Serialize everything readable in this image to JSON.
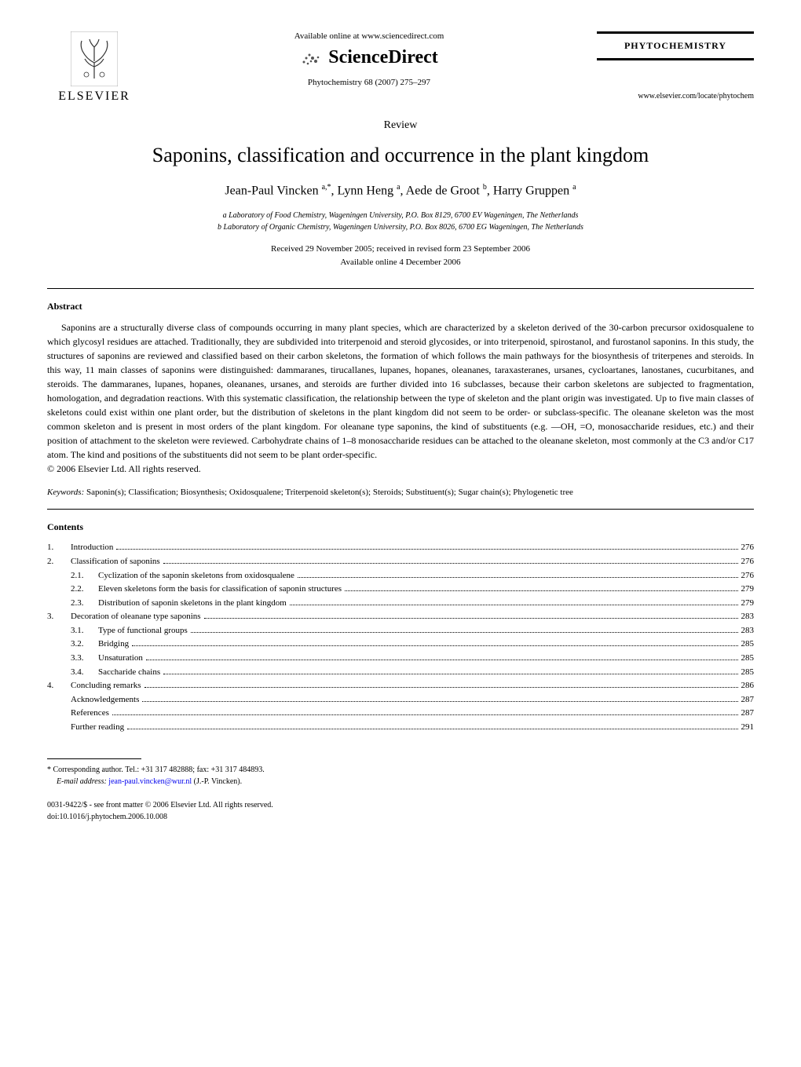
{
  "header": {
    "publisher": "ELSEVIER",
    "available_online": "Available online at www.sciencedirect.com",
    "sciencedirect": "ScienceDirect",
    "citation": "Phytochemistry 68 (2007) 275–297",
    "journal_name": "PHYTOCHEMISTRY",
    "journal_url": "www.elsevier.com/locate/phytochem"
  },
  "article": {
    "type": "Review",
    "title": "Saponins, classification and occurrence in the plant kingdom",
    "authors_html": "Jean-Paul Vincken <span class='sup'>a,*</span>, Lynn Heng <span class='sup'>a</span>, Aede de Groot <span class='sup'>b</span>, Harry Gruppen <span class='sup'>a</span>",
    "affiliation_a": "a Laboratory of Food Chemistry, Wageningen University, P.O. Box 8129, 6700 EV Wageningen, The Netherlands",
    "affiliation_b": "b Laboratory of Organic Chemistry, Wageningen University, P.O. Box 8026, 6700 EG Wageningen, The Netherlands",
    "received": "Received 29 November 2005; received in revised form 23 September 2006",
    "available": "Available online 4 December 2006"
  },
  "abstract": {
    "heading": "Abstract",
    "text": "Saponins are a structurally diverse class of compounds occurring in many plant species, which are characterized by a skeleton derived of the 30-carbon precursor oxidosqualene to which glycosyl residues are attached. Traditionally, they are subdivided into triterpenoid and steroid glycosides, or into triterpenoid, spirostanol, and furostanol saponins. In this study, the structures of saponins are reviewed and classified based on their carbon skeletons, the formation of which follows the main pathways for the biosynthesis of triterpenes and steroids. In this way, 11 main classes of saponins were distinguished: dammaranes, tirucallanes, lupanes, hopanes, oleananes, taraxasteranes, ursanes, cycloartanes, lanostanes, cucurbitanes, and steroids. The dammaranes, lupanes, hopanes, oleananes, ursanes, and steroids are further divided into 16 subclasses, because their carbon skeletons are subjected to fragmentation, homologation, and degradation reactions. With this systematic classification, the relationship between the type of skeleton and the plant origin was investigated. Up to five main classes of skeletons could exist within one plant order, but the distribution of skeletons in the plant kingdom did not seem to be order- or subclass-specific. The oleanane skeleton was the most common skeleton and is present in most orders of the plant kingdom. For oleanane type saponins, the kind of substituents (e.g. —OH, =O, monosaccharide residues, etc.) and their position of attachment to the skeleton were reviewed. Carbohydrate chains of 1–8 monosaccharide residues can be attached to the oleanane skeleton, most commonly at the C3 and/or C17 atom. The kind and positions of the substituents did not seem to be plant order-specific.",
    "copyright": "© 2006 Elsevier Ltd. All rights reserved."
  },
  "keywords": {
    "label": "Keywords:",
    "text": " Saponin(s); Classification; Biosynthesis; Oxidosqualene; Triterpenoid skeleton(s); Steroids; Substituent(s); Sugar chain(s); Phylogenetic tree"
  },
  "contents": {
    "heading": "Contents",
    "items": [
      {
        "num": "1.",
        "label": "Introduction",
        "page": "276",
        "level": 1
      },
      {
        "num": "2.",
        "label": "Classification of saponins",
        "page": "276",
        "level": 1
      },
      {
        "num": "2.1.",
        "label": "Cyclization of the saponin skeletons from oxidosqualene",
        "page": "276",
        "level": 2
      },
      {
        "num": "2.2.",
        "label": "Eleven skeletons form the basis for classification of saponin structures",
        "page": "279",
        "level": 2
      },
      {
        "num": "2.3.",
        "label": "Distribution of saponin skeletons in the plant kingdom",
        "page": "279",
        "level": 2
      },
      {
        "num": "3.",
        "label": "Decoration of oleanane type saponins",
        "page": "283",
        "level": 1
      },
      {
        "num": "3.1.",
        "label": "Type of functional groups",
        "page": "283",
        "level": 2
      },
      {
        "num": "3.2.",
        "label": "Bridging",
        "page": "285",
        "level": 2
      },
      {
        "num": "3.3.",
        "label": "Unsaturation",
        "page": "285",
        "level": 2
      },
      {
        "num": "3.4.",
        "label": "Saccharide chains",
        "page": "285",
        "level": 2
      },
      {
        "num": "4.",
        "label": "Concluding remarks",
        "page": "286",
        "level": 1
      },
      {
        "num": "",
        "label": "Acknowledgements",
        "page": "287",
        "level": 1.5
      },
      {
        "num": "",
        "label": "References",
        "page": "287",
        "level": 1.5
      },
      {
        "num": "",
        "label": "Further reading",
        "page": "291",
        "level": 1.5
      }
    ]
  },
  "footer": {
    "corresponding": "* Corresponding author. Tel.: +31 317 482888; fax: +31 317 484893.",
    "email_label": "E-mail address:",
    "email": "jean-paul.vincken@wur.nl",
    "email_suffix": " (J.-P. Vincken).",
    "front_matter": "0031-9422/$ - see front matter © 2006 Elsevier Ltd. All rights reserved.",
    "doi": "doi:10.1016/j.phytochem.2006.10.008"
  },
  "style": {
    "link_color": "#0000ee",
    "text_color": "#000000",
    "background": "#ffffff"
  }
}
